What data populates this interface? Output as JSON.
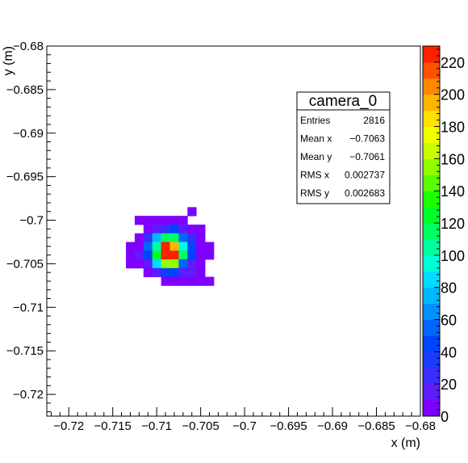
{
  "chart_data": {
    "type": "heatmap",
    "title": "",
    "xlabel": "x (m)",
    "ylabel": "y (m)",
    "xlim": [
      -0.7225,
      -0.68
    ],
    "ylim": [
      -0.7225,
      -0.68
    ],
    "x_ticks": [
      -0.72,
      -0.715,
      -0.71,
      -0.705,
      -0.7,
      -0.695,
      -0.69,
      -0.685,
      -0.68
    ],
    "x_tick_labels": [
      "−0.72",
      "−0.715",
      "−0.71",
      "−0.705",
      "−0.7",
      "−0.695",
      "−0.69",
      "−0.685",
      "−0.68"
    ],
    "y_ticks": [
      -0.72,
      -0.715,
      -0.71,
      -0.705,
      -0.7,
      -0.695,
      -0.69,
      -0.685,
      -0.68
    ],
    "y_tick_labels": [
      "−0.72",
      "−0.715",
      "−0.71",
      "−0.705",
      "−0.7",
      "−0.695",
      "−0.69",
      "−0.685",
      "−0.68"
    ],
    "bins": {
      "x_edges_start": -0.7135,
      "y_rows_top": -0.6985,
      "bin_width": 0.001,
      "rows": [
        [
          0,
          0,
          0,
          0,
          5,
          0,
          0,
          0,
          0,
          0
        ],
        [
          5,
          5,
          5,
          5,
          5,
          5,
          0,
          0,
          0,
          0
        ],
        [
          0,
          5,
          18,
          28,
          40,
          18,
          5,
          5,
          0,
          0
        ],
        [
          5,
          22,
          75,
          110,
          110,
          55,
          22,
          5,
          0,
          0
        ],
        [
          5,
          5,
          55,
          105,
          225,
          190,
          90,
          45,
          5,
          5
        ],
        [
          5,
          18,
          45,
          120,
          225,
          225,
          110,
          45,
          5,
          5
        ],
        [
          5,
          5,
          18,
          80,
          150,
          150,
          55,
          18,
          5,
          0
        ],
        [
          0,
          5,
          18,
          40,
          40,
          18,
          18,
          5,
          0,
          0
        ],
        [
          0,
          0,
          5,
          5,
          5,
          5,
          5,
          5,
          0,
          0
        ]
      ],
      "row_start_col": [
        4,
        2,
        2,
        2,
        1,
        1,
        1,
        2,
        3
      ]
    },
    "zlim": [
      0,
      230
    ],
    "z_ticks": [
      0,
      20,
      40,
      60,
      80,
      100,
      120,
      140,
      160,
      180,
      200,
      220
    ],
    "z_tick_labels": [
      "0",
      "20",
      "40",
      "60",
      "80",
      "100",
      "120",
      "140",
      "160",
      "180",
      "200",
      "220"
    ],
    "palette": [
      "#7f00ff",
      "#5e1cff",
      "#3a2dff",
      "#1a3cff",
      "#0044ff",
      "#0066ff",
      "#0090ff",
      "#00b8ff",
      "#00dcff",
      "#00ffd8",
      "#00ffa0",
      "#00ff60",
      "#00ff28",
      "#1eff00",
      "#58ff00",
      "#90ff00",
      "#c8ff00",
      "#f0ff00",
      "#ffe000",
      "#ffb400",
      "#ff8800",
      "#ff5000",
      "#ff2000"
    ],
    "stats": {
      "title": "camera_0",
      "rows": [
        {
          "label": "Entries",
          "value": "2816"
        },
        {
          "label": "Mean x",
          "value": "−0.7063"
        },
        {
          "label": "Mean y",
          "value": "−0.7061"
        },
        {
          "label": "RMS x",
          "value": "0.002737"
        },
        {
          "label": "RMS y",
          "value": "0.002683"
        }
      ]
    }
  }
}
